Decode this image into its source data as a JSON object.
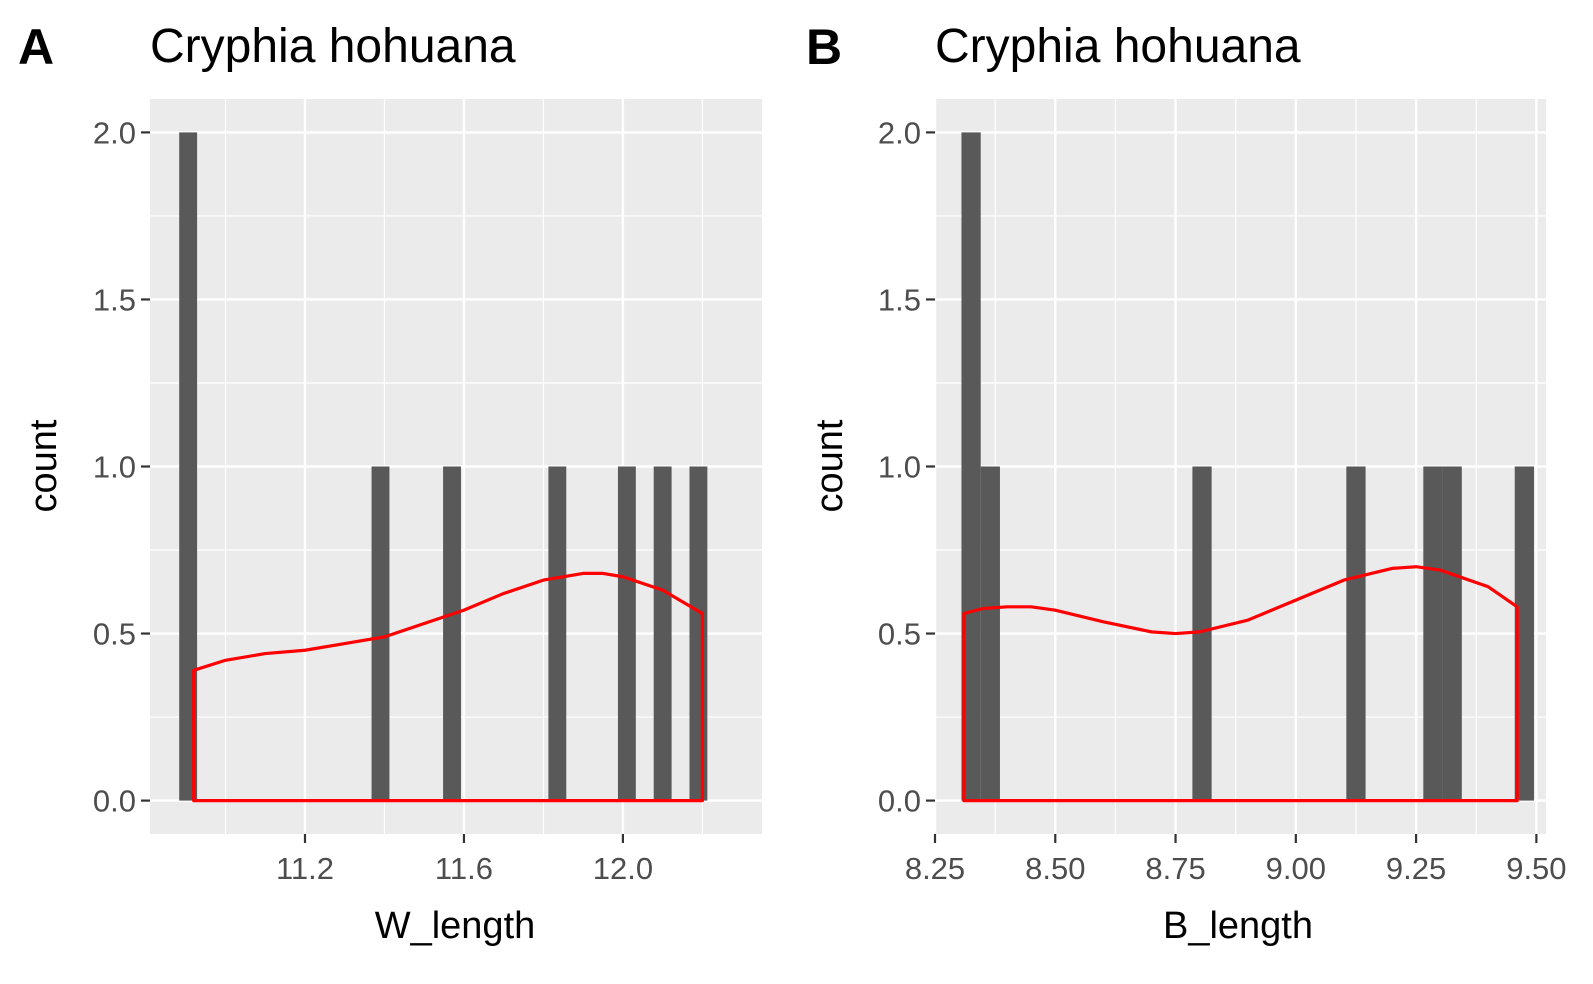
{
  "chart_data": [
    {
      "panel_label": "A",
      "type": "histogram",
      "title": "Cryphia hohuana",
      "xlabel": "W_length",
      "ylabel": "count",
      "xlim": [
        10.81,
        12.35
      ],
      "ylim": [
        -0.1,
        2.1
      ],
      "x_ticks": [
        11.2,
        11.6,
        12.0
      ],
      "x_tick_labels": [
        "11.2",
        "11.6",
        "12.0"
      ],
      "y_ticks": [
        0,
        0.5,
        1,
        1.5,
        2
      ],
      "y_tick_labels": [
        "0.0",
        "0.5",
        "1.0",
        "1.5",
        "2.0"
      ],
      "bar_width": 0.045,
      "bars": [
        {
          "x": 10.906,
          "count": 2
        },
        {
          "x": 11.39,
          "count": 1
        },
        {
          "x": 11.57,
          "count": 1
        },
        {
          "x": 11.835,
          "count": 1
        },
        {
          "x": 12.01,
          "count": 1
        },
        {
          "x": 12.1,
          "count": 1
        },
        {
          "x": 12.19,
          "count": 1
        }
      ],
      "density_curve": {
        "color": "#ff0000",
        "x": [
          10.92,
          11.0,
          11.1,
          11.2,
          11.3,
          11.4,
          11.5,
          11.6,
          11.7,
          11.8,
          11.9,
          11.95,
          12.0,
          12.1,
          12.2
        ],
        "y": [
          0.39,
          0.42,
          0.44,
          0.45,
          0.47,
          0.49,
          0.53,
          0.57,
          0.62,
          0.66,
          0.68,
          0.68,
          0.67,
          0.63,
          0.56
        ]
      },
      "bar_color": "#595959",
      "panel_background": "#ebebeb",
      "grid": true
    },
    {
      "panel_label": "B",
      "type": "histogram",
      "title": "Cryphia hohuana",
      "xlabel": "B_length",
      "ylabel": "count",
      "xlim": [
        8.25,
        9.52
      ],
      "ylim": [
        -0.1,
        2.1
      ],
      "x_ticks": [
        8.25,
        8.5,
        8.75,
        9.0,
        9.25,
        9.5
      ],
      "x_tick_labels": [
        "8.25",
        "8.50",
        "8.75",
        "9.00",
        "9.25",
        "9.50"
      ],
      "y_ticks": [
        0,
        0.5,
        1,
        1.5,
        2
      ],
      "y_tick_labels": [
        "0.0",
        "0.5",
        "1.0",
        "1.5",
        "2.0"
      ],
      "bar_width": 0.04,
      "bars": [
        {
          "x": 8.325,
          "count": 2
        },
        {
          "x": 8.365,
          "count": 1
        },
        {
          "x": 8.805,
          "count": 1
        },
        {
          "x": 9.125,
          "count": 1
        },
        {
          "x": 9.285,
          "count": 1
        },
        {
          "x": 9.325,
          "count": 1
        },
        {
          "x": 9.475,
          "count": 1
        }
      ],
      "density_curve": {
        "color": "#ff0000",
        "x": [
          8.31,
          8.35,
          8.4,
          8.45,
          8.5,
          8.6,
          8.7,
          8.75,
          8.8,
          8.9,
          9.0,
          9.1,
          9.2,
          9.25,
          9.3,
          9.4,
          9.46
        ],
        "y": [
          0.56,
          0.575,
          0.58,
          0.58,
          0.57,
          0.535,
          0.505,
          0.5,
          0.505,
          0.54,
          0.6,
          0.66,
          0.695,
          0.7,
          0.69,
          0.64,
          0.58
        ]
      },
      "bar_color": "#595959",
      "panel_background": "#ebebeb",
      "grid": true
    }
  ]
}
